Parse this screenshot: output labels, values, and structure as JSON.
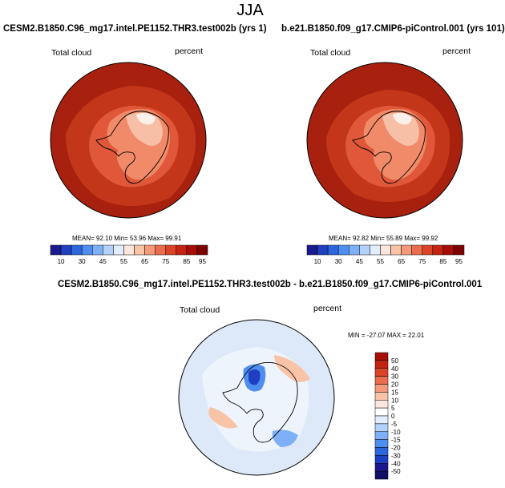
{
  "page": {
    "title": "JJA",
    "left_title": "CESM2.B1850.C96_mg17.intel.PE1152.THR3.test002b (yrs 1)",
    "right_title": "b.e21.B1850.f09_g17.CMIP6-piControl.001 (yrs 101)",
    "diff_title": "CESM2.B1850.C96_mg17.intel.PE1152.THR3.test002b - b.e21.B1850.f09_g17.CMIP6-piControl.001"
  },
  "chart_data": [
    {
      "type": "heatmap",
      "projection": "south polar stereographic",
      "variable": "Total cloud",
      "units": "percent",
      "stats_text": "MEAN=  92.10  Min=  53.96  Max=  99.91",
      "mean": 92.1,
      "min": 53.96,
      "max": 99.91,
      "colorbar": {
        "orientation": "horizontal",
        "tick_labels": [
          "10",
          "30",
          "45",
          "55",
          "65",
          "75",
          "85",
          "95"
        ],
        "levels": [
          10,
          20,
          30,
          40,
          45,
          50,
          55,
          60,
          65,
          70,
          75,
          80,
          85,
          90,
          95
        ]
      }
    },
    {
      "type": "heatmap",
      "projection": "south polar stereographic",
      "variable": "Total cloud",
      "units": "percent",
      "stats_text": "MEAN=  92.82  Min=  55.89  Max=  99.92",
      "mean": 92.82,
      "min": 55.89,
      "max": 99.92,
      "colorbar": {
        "orientation": "horizontal",
        "tick_labels": [
          "10",
          "30",
          "45",
          "55",
          "65",
          "75",
          "85",
          "95"
        ],
        "levels": [
          10,
          20,
          30,
          40,
          45,
          50,
          55,
          60,
          65,
          70,
          75,
          80,
          85,
          90,
          95
        ]
      }
    },
    {
      "type": "heatmap",
      "projection": "south polar stereographic",
      "variable": "Total cloud",
      "units": "percent",
      "stats_text": "MIN = -27.07  MAX =  22.01",
      "min": -27.07,
      "max": 22.01,
      "colorbar": {
        "orientation": "vertical",
        "tick_labels": [
          "50",
          "40",
          "30",
          "20",
          "15",
          "10",
          "5",
          "0",
          "-5",
          "-10",
          "-15",
          "-20",
          "-30",
          "-40",
          "-50"
        ]
      }
    }
  ],
  "colors": {
    "seq": [
      "#1a1a8f",
      "#1e3fc0",
      "#2c66dd",
      "#4e8ef0",
      "#7eb0f7",
      "#b3d1fb",
      "#e2eefd",
      "#fde6dc",
      "#f9c3a8",
      "#f49a7a",
      "#ec6d4e",
      "#db4228",
      "#c42312",
      "#a50f08",
      "#7f0000"
    ],
    "div_top_down": [
      "#a50f08",
      "#c42312",
      "#db4228",
      "#ec6d4e",
      "#f49a7a",
      "#f9c3a8",
      "#fde6dc",
      "#ffffff",
      "#e2eefd",
      "#b3d1fb",
      "#7eb0f7",
      "#4e8ef0",
      "#2c66dd",
      "#1e3fc0",
      "#1a1a8f",
      "#101066"
    ]
  }
}
